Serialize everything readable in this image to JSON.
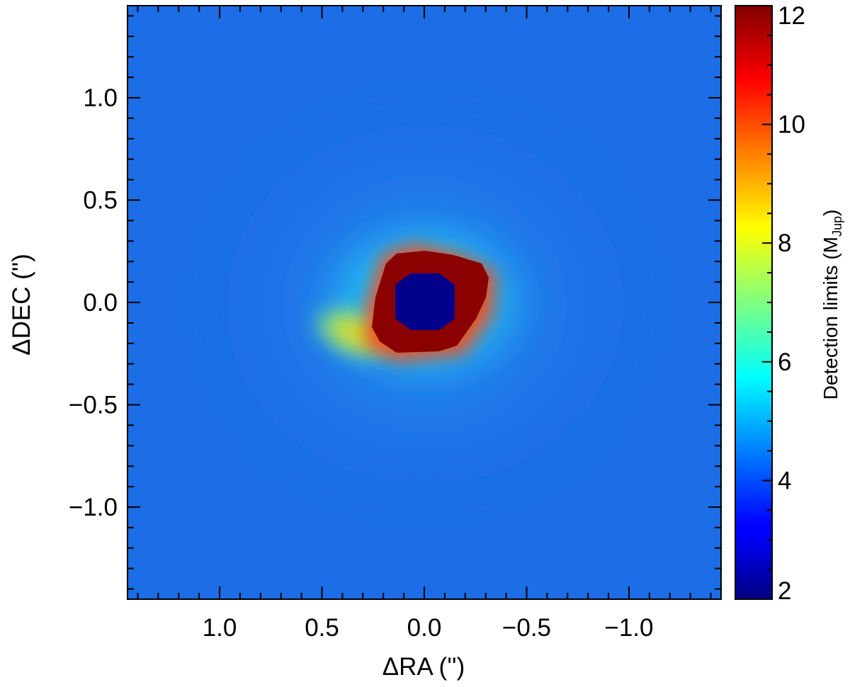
{
  "chart_data": {
    "type": "heatmap",
    "title": "",
    "xlabel": "ΔRA ('')",
    "ylabel": "ΔDEC ('')",
    "xlim": [
      1.45,
      -1.45
    ],
    "ylim": [
      -1.45,
      1.45
    ],
    "x_ticks": [
      {
        "value": 1.0,
        "label": "1.0"
      },
      {
        "value": 0.5,
        "label": "0.5"
      },
      {
        "value": 0.0,
        "label": "0.0"
      },
      {
        "value": -0.5,
        "label": "−0.5"
      },
      {
        "value": -1.0,
        "label": "−1.0"
      }
    ],
    "y_ticks": [
      {
        "value": 1.0,
        "label": "1.0"
      },
      {
        "value": 0.5,
        "label": "0.5"
      },
      {
        "value": 0.0,
        "label": "0.0"
      },
      {
        "value": -0.5,
        "label": "−0.5"
      },
      {
        "value": -1.0,
        "label": "−1.0"
      }
    ],
    "colorbar": {
      "label": "Detection limits",
      "unit_main": "M",
      "unit_sub": "Jup",
      "range": [
        2,
        12
      ],
      "ticks": [
        {
          "value": 12,
          "label": "12"
        },
        {
          "value": 10,
          "label": "10"
        },
        {
          "value": 8,
          "label": "8"
        },
        {
          "value": 6,
          "label": "6"
        },
        {
          "value": 4,
          "label": "4"
        },
        {
          "value": 2,
          "label": "2"
        }
      ],
      "colormap": "jet"
    },
    "field": {
      "background_level": 4.6,
      "halo_level": 5.8,
      "saturation_level": 12,
      "center_mask_level": 2,
      "center_mask_halfwidth": 0.13,
      "saturated_core_extent": {
        "x": [
          -0.32,
          0.25
        ],
        "y": [
          -0.24,
          0.25
        ]
      },
      "bright_wing_direction": "east-southeast (toward +ΔRA, −ΔDEC)"
    },
    "grid": false,
    "legend": "none"
  }
}
